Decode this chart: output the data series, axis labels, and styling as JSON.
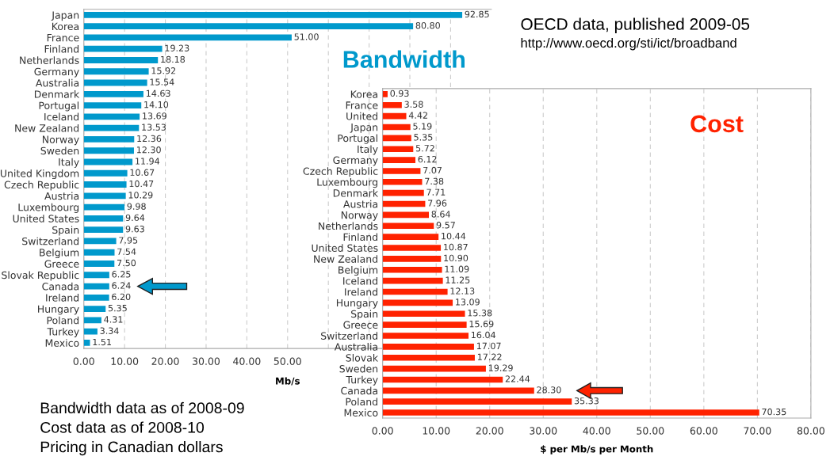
{
  "chart_data": [
    {
      "type": "bar",
      "orientation": "horizontal",
      "title": "Bandwidth",
      "xlabel": "Mb/s",
      "categories": [
        "Japan",
        "Korea",
        "France",
        "Finland",
        "Netherlands",
        "Germany",
        "Australia",
        "Denmark",
        "Portugal",
        "Iceland",
        "New Zealand",
        "Norway",
        "Sweden",
        "Italy",
        "United Kingdom",
        "Czech Republic",
        "Austria",
        "Luxembourg",
        "United States",
        "Spain",
        "Switzerland",
        "Belgium",
        "Greece",
        "Slovak Republic",
        "Canada",
        "Ireland",
        "Hungary",
        "Poland",
        "Turkey",
        "Mexico"
      ],
      "values": [
        92.85,
        80.8,
        51.0,
        19.23,
        18.18,
        15.92,
        15.54,
        14.63,
        14.1,
        13.69,
        13.53,
        12.36,
        12.3,
        11.94,
        10.67,
        10.47,
        10.29,
        9.98,
        9.64,
        9.63,
        7.95,
        7.54,
        7.5,
        6.25,
        6.24,
        6.2,
        5.35,
        4.31,
        3.34,
        1.51
      ],
      "value_labels": [
        "92.85",
        "80.80",
        "51.00",
        "19.23",
        "18.18",
        "15.92",
        "15.54",
        "14.63",
        "14.10",
        "13.69",
        "13.53",
        "12.36",
        "12.30",
        "11.94",
        "10.67",
        "10.47",
        "10.29",
        "9.98",
        "9.64",
        "9.63",
        "7.95",
        "7.54",
        "7.50",
        "6.25",
        "6.24",
        "6.20",
        "5.35",
        "4.31",
        "3.34",
        "1.51"
      ],
      "color": "#0099cc",
      "xlim": [
        0,
        100
      ],
      "xticks": [
        {
          "value": 0,
          "label": "0.00"
        },
        {
          "value": 10,
          "label": "10.00"
        },
        {
          "value": 20,
          "label": "20.00"
        },
        {
          "value": 30,
          "label": "30.00"
        },
        {
          "value": 40,
          "label": "40.00"
        },
        {
          "value": 50,
          "label": "50.00"
        },
        {
          "value": 60,
          "label": null
        },
        {
          "value": 70,
          "label": null
        },
        {
          "value": 80,
          "label": null
        },
        {
          "value": 90,
          "label": null
        }
      ],
      "grid": "x",
      "annotations": [
        "OECD data, published 2009-05",
        "http://www.oecd.org/sti/ict/broadband",
        "Bandwidth data as of 2008-09",
        "Cost data as of 2008-10",
        "Pricing in Canadian dollars"
      ]
    },
    {
      "type": "bar",
      "orientation": "horizontal",
      "title": "Cost",
      "xlabel": "$ per Mb/s per Month",
      "categories": [
        "Korea",
        "France",
        "United",
        "Japan",
        "Portugal",
        "Italy",
        "Germany",
        "Czech Republic",
        "Luxembourg",
        "Denmark",
        "Austria",
        "Norway",
        "Netherlands",
        "Finland",
        "United States",
        "New Zealand",
        "Belgium",
        "Iceland",
        "Ireland",
        "Hungary",
        "Spain",
        "Greece",
        "Switzerland",
        "Australia",
        "Slovak",
        "Sweden",
        "Turkey",
        "Canada",
        "Poland",
        "Mexico"
      ],
      "values": [
        0.93,
        3.58,
        4.42,
        5.19,
        5.35,
        5.72,
        6.12,
        7.07,
        7.38,
        7.71,
        7.96,
        8.64,
        9.57,
        10.44,
        10.87,
        10.9,
        11.09,
        11.25,
        12.13,
        13.09,
        15.38,
        15.69,
        16.04,
        17.07,
        17.22,
        19.29,
        22.44,
        28.3,
        35.33,
        70.35
      ],
      "value_labels": [
        "0.93",
        "3.58",
        "4.42",
        "5.19",
        "5.35",
        "5.72",
        "6.12",
        "7.07",
        "7.38",
        "7.71",
        "7.96",
        "8.64",
        "9.57",
        "10.44",
        "10.87",
        "10.90",
        "11.09",
        "11.25",
        "12.13",
        "13.09",
        "15.38",
        "15.69",
        "16.04",
        "17.07",
        "17.22",
        "19.29",
        "22.44",
        "28.30",
        "35.33",
        "70.35"
      ],
      "color": "#ff2200",
      "xlim": [
        0,
        80
      ],
      "xticks": [
        {
          "value": 0,
          "label": "0.00"
        },
        {
          "value": 10,
          "label": "10.00"
        },
        {
          "value": 20,
          "label": "20.00"
        },
        {
          "value": 30,
          "label": "30.00"
        },
        {
          "value": 40,
          "label": "40.00"
        },
        {
          "value": 50,
          "label": "50.00"
        },
        {
          "value": 60,
          "label": "60.00"
        },
        {
          "value": 70,
          "label": "70.00"
        },
        {
          "value": 80,
          "label": "80.00"
        }
      ],
      "grid": "x"
    }
  ]
}
